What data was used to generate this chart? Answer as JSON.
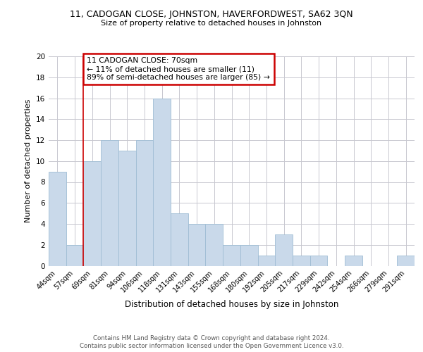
{
  "title_main": "11, CADOGAN CLOSE, JOHNSTON, HAVERFORDWEST, SA62 3QN",
  "title_sub": "Size of property relative to detached houses in Johnston",
  "xlabel": "Distribution of detached houses by size in Johnston",
  "ylabel": "Number of detached properties",
  "categories": [
    "44sqm",
    "57sqm",
    "69sqm",
    "81sqm",
    "94sqm",
    "106sqm",
    "118sqm",
    "131sqm",
    "143sqm",
    "155sqm",
    "168sqm",
    "180sqm",
    "192sqm",
    "205sqm",
    "217sqm",
    "229sqm",
    "242sqm",
    "254sqm",
    "266sqm",
    "279sqm",
    "291sqm"
  ],
  "values": [
    9,
    2,
    10,
    12,
    11,
    12,
    16,
    5,
    4,
    4,
    2,
    2,
    1,
    3,
    1,
    1,
    0,
    1,
    0,
    0,
    1
  ],
  "bar_color": "#c9d9ea",
  "bar_edge_color": "#9fbdd4",
  "ref_line_index": 2,
  "ref_line_color": "#cc0000",
  "annotation_title": "11 CADOGAN CLOSE: 70sqm",
  "annotation_line1": "← 11% of detached houses are smaller (11)",
  "annotation_line2": "89% of semi-detached houses are larger (85) →",
  "annotation_box_color": "#cc0000",
  "footer_line1": "Contains HM Land Registry data © Crown copyright and database right 2024.",
  "footer_line2": "Contains public sector information licensed under the Open Government Licence v3.0.",
  "ylim": [
    0,
    20
  ],
  "yticks": [
    0,
    2,
    4,
    6,
    8,
    10,
    12,
    14,
    16,
    18,
    20
  ],
  "background_color": "#ffffff",
  "grid_color": "#c8c8d0"
}
